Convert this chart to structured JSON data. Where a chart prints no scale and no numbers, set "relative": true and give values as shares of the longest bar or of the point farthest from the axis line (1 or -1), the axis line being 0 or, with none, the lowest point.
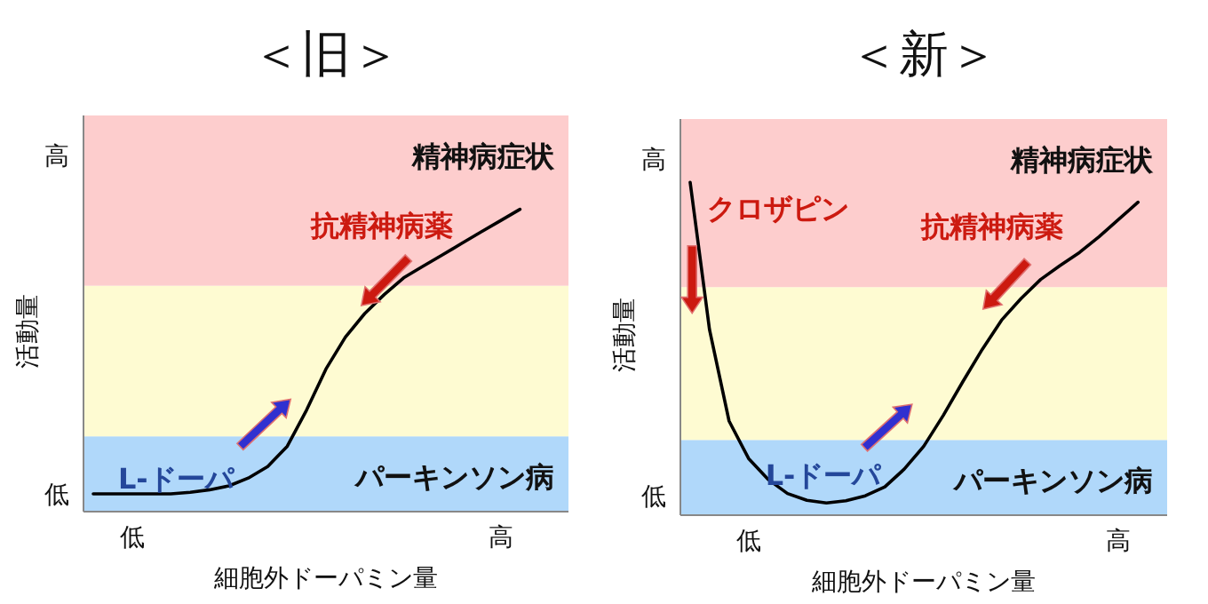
{
  "chart_data": [
    {
      "type": "line",
      "title": "＜旧＞",
      "xlabel": "細胞外ドーパミン量",
      "ylabel": "活動量",
      "categories": [
        null,
        null,
        "低",
        null,
        null,
        null,
        null,
        null,
        null,
        null,
        null,
        null,
        null,
        null,
        null,
        null,
        null,
        null,
        null,
        null,
        null,
        "高",
        null,
        null,
        null
      ],
      "series": [
        {
          "color": "#000000",
          "values": [
            0.059,
            0.059,
            0.059,
            0.059,
            0.059,
            0.064,
            0.072,
            0.085,
            0.111,
            0.149,
            0.216,
            0.336,
            0.472,
            0.577,
            0.655,
            0.718,
            0.773,
            0.811,
            0.849,
            0.887,
            0.925,
            0.962,
            1,
            null,
            null
          ]
        }
      ],
      "relative": true,
      "bands": [
        {
          "axis": "y",
          "from": 0,
          "to": 0.249,
          "label": "パーキンソン病",
          "color": "#b0d8fa"
        },
        {
          "axis": "y",
          "from": 0.249,
          "to": 0.747,
          "label": null,
          "color": "#fefbd2"
        },
        {
          "axis": "y",
          "from": 0.747,
          "to": 1.31,
          "label": "精神病症状",
          "color": "#fdcdcd"
        }
      ],
      "annotations": [
        "高",
        "低",
        "抗精神病薬",
        "L-ドーパ"
      ]
    },
    {
      "type": "line",
      "title": "＜新＞",
      "xlabel": "細胞外ドーパミン量",
      "ylabel": "活動量",
      "categories": [
        null,
        null,
        null,
        "低",
        null,
        null,
        null,
        null,
        null,
        null,
        null,
        null,
        null,
        null,
        null,
        null,
        null,
        null,
        null,
        null,
        null,
        null,
        "高",
        null,
        null
      ],
      "series": [
        {
          "color": "#000000",
          "values": [
            1,
            0.557,
            0.283,
            0.17,
            0.108,
            0.065,
            0.045,
            0.037,
            0.043,
            0.058,
            0.085,
            0.138,
            0.207,
            0.3,
            0.4,
            0.498,
            0.586,
            0.651,
            0.708,
            0.75,
            0.789,
            0.836,
            0.888,
            0.94,
            null
          ]
        }
      ],
      "relative": true,
      "bands": [
        {
          "axis": "y",
          "from": 0,
          "to": 0.226,
          "label": "パーキンソン病",
          "color": "#b0d8fa"
        },
        {
          "axis": "y",
          "from": 0.226,
          "to": 0.685,
          "label": null,
          "color": "#fefbd2"
        },
        {
          "axis": "y",
          "from": 0.685,
          "to": 1.19,
          "label": "精神病症状",
          "color": "#fdcdcd"
        }
      ],
      "annotations": [
        "高",
        "低",
        "クロザピン",
        "抗精神病薬",
        "L-ドーパ"
      ]
    }
  ]
}
